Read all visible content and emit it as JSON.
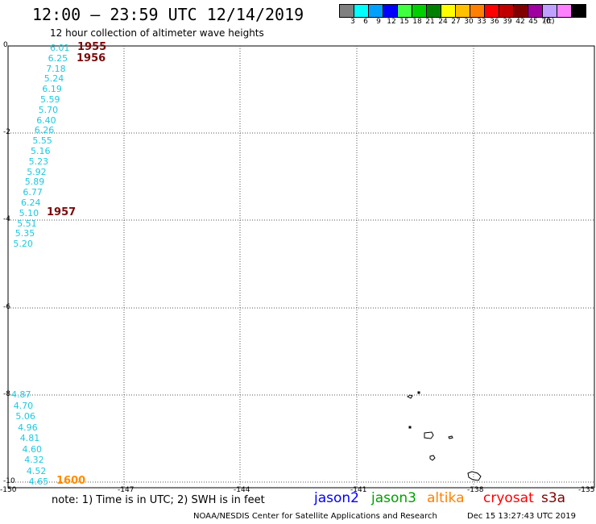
{
  "header": {
    "title": "12:00 – 23:59 UTC 12/14/2019",
    "subtitle": "12 hour collection of altimeter wave heights"
  },
  "color_scale": {
    "colors": [
      "#808080",
      "#00ffff",
      "#00a0ff",
      "#0000ff",
      "#40ff40",
      "#00d000",
      "#008000",
      "#ffff00",
      "#ffc000",
      "#ff8000",
      "#ff0000",
      "#c00000",
      "#800000",
      "#a000a0",
      "#c0a0ff",
      "#ff80ff",
      "#000000"
    ],
    "labels": [
      "3",
      "6",
      "9",
      "12",
      "15",
      "18",
      "21",
      "24",
      "27",
      "30",
      "33",
      "36",
      "39",
      "42",
      "45",
      "70",
      "(ft)"
    ]
  },
  "map": {
    "lat_ticks": [
      "0",
      "-2",
      "-4",
      "-6",
      "-8",
      "-10"
    ],
    "lon_ticks": [
      "-150",
      "-147",
      "-144",
      "-141",
      "-138",
      "-135"
    ],
    "wave_heights_upper": [
      "6.01",
      "6.25",
      "7.18",
      "5.24",
      "6.19",
      "5.59",
      "5.70",
      "6.40",
      "6.26",
      "5.55",
      "5.16",
      "5.23",
      "5.92",
      "5.89",
      "6.77",
      "6.24",
      "5.10",
      "5.51",
      "5.35",
      "5.20"
    ],
    "wave_heights_lower": [
      "4.87",
      "4.70",
      "5.06",
      "4.96",
      "4.81",
      "4.60",
      "4.32",
      "4.52",
      "4.65"
    ],
    "pass_times": [
      {
        "label": "1955",
        "color": "#7a0a0a"
      },
      {
        "label": "1956",
        "color": "#7a0a0a"
      },
      {
        "label": "1957",
        "color": "#7a0a0a"
      },
      {
        "label": "1600",
        "color": "#ff8c00"
      }
    ]
  },
  "legend": {
    "note": "note:  1) Time is in UTC;  2) SWH is in feet",
    "satellites": [
      {
        "name": "jason2",
        "color": "#0000ff"
      },
      {
        "name": "jason3",
        "color": "#00a000"
      },
      {
        "name": "altika",
        "color": "#ff8000"
      },
      {
        "name": "cryosat",
        "color": "#ff0000"
      },
      {
        "name": "s3a",
        "color": "#800000"
      }
    ]
  },
  "footer": {
    "credit": "NOAA/NESDIS Center for Satellite Applications and Research",
    "timestamp": "Dec 15 13:27:43 UTC 2019"
  }
}
